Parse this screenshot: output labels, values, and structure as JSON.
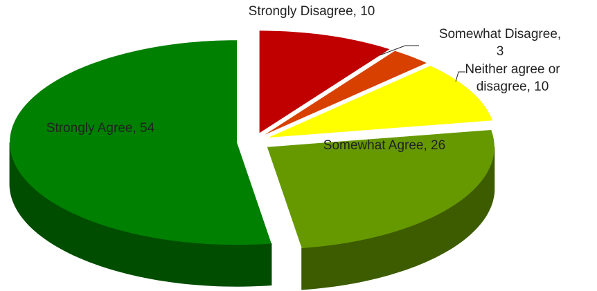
{
  "chart_data": {
    "type": "pie",
    "categories": [
      "Strongly Disagree",
      "Somewhat Disagree",
      "Neither agree or disagree",
      "Somewhat Agree",
      "Strongly Agree"
    ],
    "values": [
      10,
      3,
      10,
      26,
      54
    ],
    "value_labels": [
      "Strongly Disagree, 10",
      "Somewhat Disagree,\n3",
      "Neither agree or\ndisagree, 10",
      "Somewhat Agree, 26",
      "Strongly Agree, 54"
    ],
    "colors": [
      "#c00000",
      "#d84000",
      "#ffff00",
      "#669900",
      "#008000"
    ],
    "side_colors": [
      "#7a0000",
      "#8a2800",
      "#8a8a00",
      "#3d5c00",
      "#004d00"
    ]
  }
}
